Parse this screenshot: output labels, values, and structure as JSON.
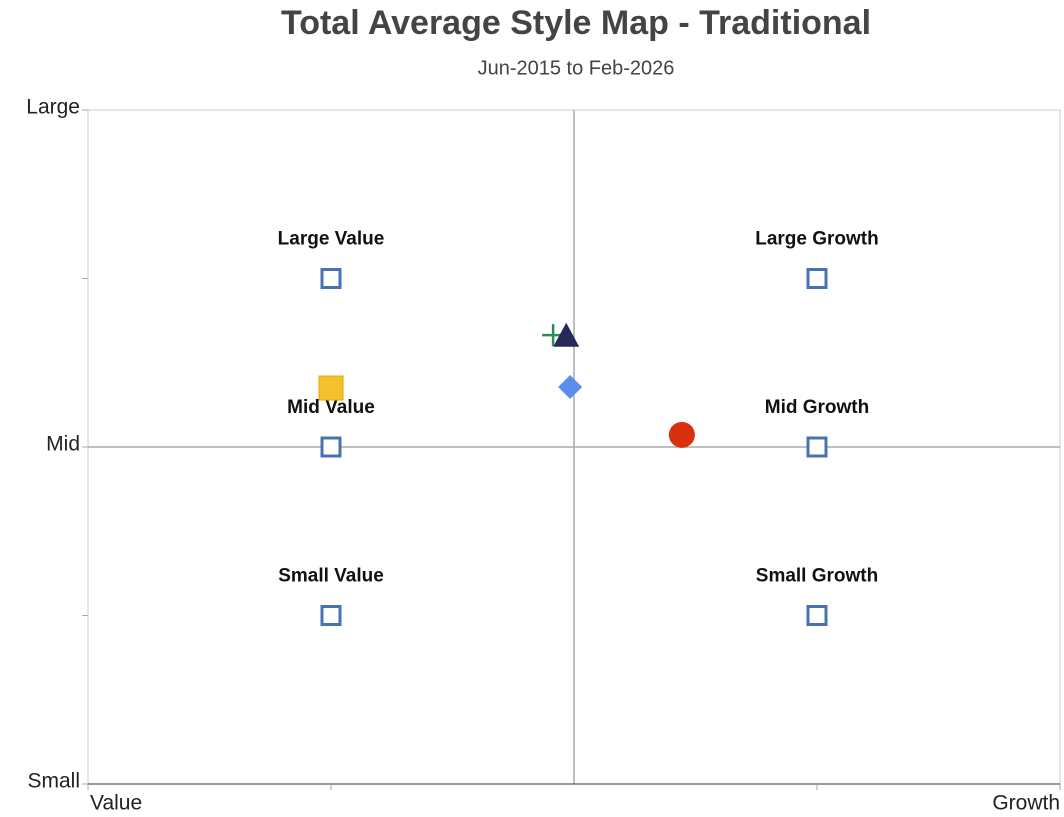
{
  "chart_data": {
    "type": "scatter",
    "title": "Total Average Style Map - Traditional",
    "subtitle": "Jun-2015 to Feb-2026",
    "xlim": [
      -1,
      1
    ],
    "ylim": [
      -1,
      1
    ],
    "xticks": [
      {
        "value": -1,
        "label": "Value"
      },
      {
        "value": 1,
        "label": "Growth"
      }
    ],
    "yticks": [
      {
        "value": -1,
        "label": "Small"
      },
      {
        "value": 0,
        "label": "Mid"
      },
      {
        "value": 1,
        "label": "Large"
      }
    ],
    "minor_xticks": [
      -0.5,
      0.5
    ],
    "minor_yticks": [
      -0.5,
      0.5
    ],
    "crosshair": {
      "x": 0,
      "y": 0
    },
    "series": [
      {
        "marker": "open-square",
        "color": "#4a72b0",
        "labels": [
          "Large Value",
          "Large Growth",
          "Mid Value",
          "Mid Growth",
          "Small Value",
          "Small Growth"
        ],
        "x": [
          -0.5,
          0.5,
          -0.5,
          0.5,
          -0.5,
          0.5
        ],
        "y": [
          0.5,
          0.5,
          0,
          0,
          -0.5,
          -0.5
        ]
      },
      {
        "marker": "plus",
        "color": "#2e8b57",
        "x": [
          -0.043
        ],
        "y": [
          0.332
        ]
      },
      {
        "marker": "triangle",
        "color": "#262a5a",
        "x": [
          -0.016
        ],
        "y": [
          0.33
        ]
      },
      {
        "marker": "diamond",
        "color": "#5b8def",
        "x": [
          -0.008
        ],
        "y": [
          0.178
        ]
      },
      {
        "marker": "square",
        "color": "#f5c02e",
        "x": [
          -0.5
        ],
        "y": [
          0.175
        ]
      },
      {
        "marker": "circle",
        "color": "#d9300f",
        "x": [
          0.222
        ],
        "y": [
          0.036
        ]
      }
    ]
  }
}
